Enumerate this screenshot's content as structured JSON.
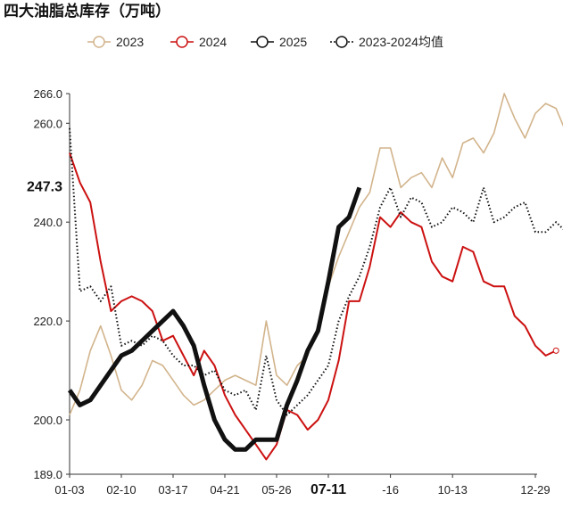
{
  "chart_data": {
    "type": "line",
    "title": "四大油脂总库存（万吨）",
    "ylim": [
      189.0,
      266.0
    ],
    "grid": false,
    "legend_position": "top",
    "x_tick_labels": [
      "01-03",
      "02-10",
      "03-17",
      "04-21",
      "05-26",
      "07-11",
      "-16",
      "10-13",
      "12-29"
    ],
    "x_tick_index": [
      0,
      5,
      10,
      15,
      20,
      25,
      31,
      37,
      45
    ],
    "highlight_x_label": "07-11",
    "y_tick_labels": [
      "189.0",
      "200.0",
      "220.0",
      "240.0",
      "260.0",
      "266.0"
    ],
    "highlight_value_label": "247.3",
    "highlight_value": 247.3,
    "series": [
      {
        "name": "2023",
        "color": "#d2b48c",
        "style": "thin",
        "last_marker": true,
        "values": [
          201,
          206,
          214,
          219,
          213,
          206,
          204,
          207,
          212,
          211,
          208,
          205,
          203,
          204,
          206,
          208,
          209,
          208,
          207,
          220,
          209,
          207,
          211,
          213,
          219,
          227,
          233,
          238,
          243,
          246,
          255,
          255,
          247,
          249,
          250,
          247,
          253,
          249,
          256,
          257,
          254,
          258,
          266,
          261,
          257,
          262,
          264,
          263,
          258,
          256,
          255,
          262,
          255
        ]
      },
      {
        "name": "2024",
        "color": "#cc1111",
        "style": "thin",
        "last_marker": true,
        "values": [
          254,
          248,
          244,
          232,
          222,
          224,
          225,
          224,
          222,
          216,
          217,
          213,
          209,
          214,
          211,
          205,
          201,
          198,
          195,
          192,
          195,
          202,
          201,
          198,
          200,
          204,
          212,
          224,
          224,
          231,
          241,
          239,
          242,
          240,
          239,
          232,
          229,
          228,
          235,
          234,
          228,
          227,
          227,
          221,
          219,
          215,
          213,
          214
        ]
      },
      {
        "name": "2025",
        "color": "#111111",
        "style": "thick",
        "last_marker": false,
        "values": [
          206,
          203,
          204,
          207,
          210,
          213,
          214,
          216,
          218,
          220,
          222,
          219,
          215,
          207,
          200,
          196,
          194,
          194,
          196,
          196,
          196,
          203,
          208,
          214,
          218,
          228,
          239,
          241,
          247
        ]
      },
      {
        "name": "2023-2024均值",
        "color": "#111111",
        "style": "dotted",
        "last_marker": true,
        "values": [
          259,
          226,
          227,
          224,
          227,
          215,
          216,
          215,
          217,
          216,
          213,
          211,
          211,
          209,
          210,
          206,
          205,
          206,
          202,
          213,
          204,
          201,
          203,
          205,
          208,
          211,
          220,
          225,
          229,
          235,
          243,
          247,
          241,
          245,
          244,
          239,
          240,
          243,
          242,
          240,
          247,
          240,
          241,
          243,
          244,
          238,
          238,
          240,
          238,
          239,
          236,
          234
        ]
      }
    ]
  }
}
